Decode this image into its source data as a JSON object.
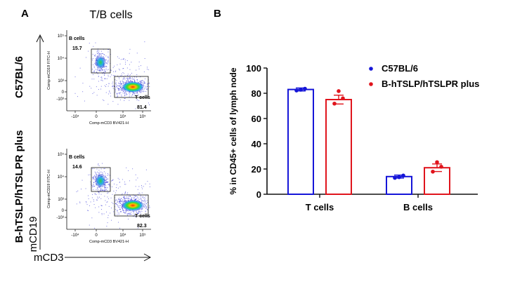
{
  "panel_a": {
    "label": "A",
    "title": "T/B cells",
    "row_labels": [
      "C57BL/6",
      "B-hTSLP/hTSLPR plus"
    ],
    "x_axis_title": "mCD3",
    "y_axis_title": "mCD19",
    "plot_xlabel": "Comp-mCD3 BV421-H",
    "plot_ylabel": "Comp-mCD19 FITC-H",
    "y_ticks": [
      "10⁵",
      "10⁴",
      "10³",
      "0",
      "-10³"
    ],
    "x_ticks": [
      "-10⁴",
      "0",
      "10⁴",
      "10⁵"
    ],
    "gates": [
      {
        "strain": "C57BL/6",
        "b_label": "B cells",
        "b_value": "15.7",
        "t_label": "T cells",
        "t_value": "81.4"
      },
      {
        "strain": "B-hTSLP/hTSLPR plus",
        "b_label": "B cells",
        "b_value": "14.6",
        "t_label": "T cells",
        "t_value": "82.3"
      }
    ]
  },
  "panel_b": {
    "label": "B"
  },
  "colors": {
    "c57": "#1515d8",
    "htslp": "#e0141c"
  },
  "chart_data": {
    "type": "bar",
    "title": "",
    "xlabel": "",
    "ylabel": "% in CD45+ cells of lymph node",
    "categories": [
      "T cells",
      "B cells"
    ],
    "ylim": [
      0,
      100
    ],
    "yticks": [
      0,
      20,
      40,
      60,
      80,
      100
    ],
    "legend_position": "top-right",
    "series": [
      {
        "name": "C57BL/6",
        "color": "#1515d8",
        "values": [
          83,
          14
        ],
        "errors": [
          1.2,
          1.2
        ],
        "points": [
          [
            82.2,
            83.6,
            82.8
          ],
          [
            13.0,
            14.8,
            13.5
          ]
        ]
      },
      {
        "name": "B-hTSLP/hTSLPR plus",
        "color": "#e0141c",
        "values": [
          75,
          21
        ],
        "errors": [
          3.5,
          3.0
        ],
        "points": [
          [
            71.8,
            76.0,
            81.7
          ],
          [
            17.9,
            21.8,
            25.4
          ]
        ]
      }
    ]
  }
}
